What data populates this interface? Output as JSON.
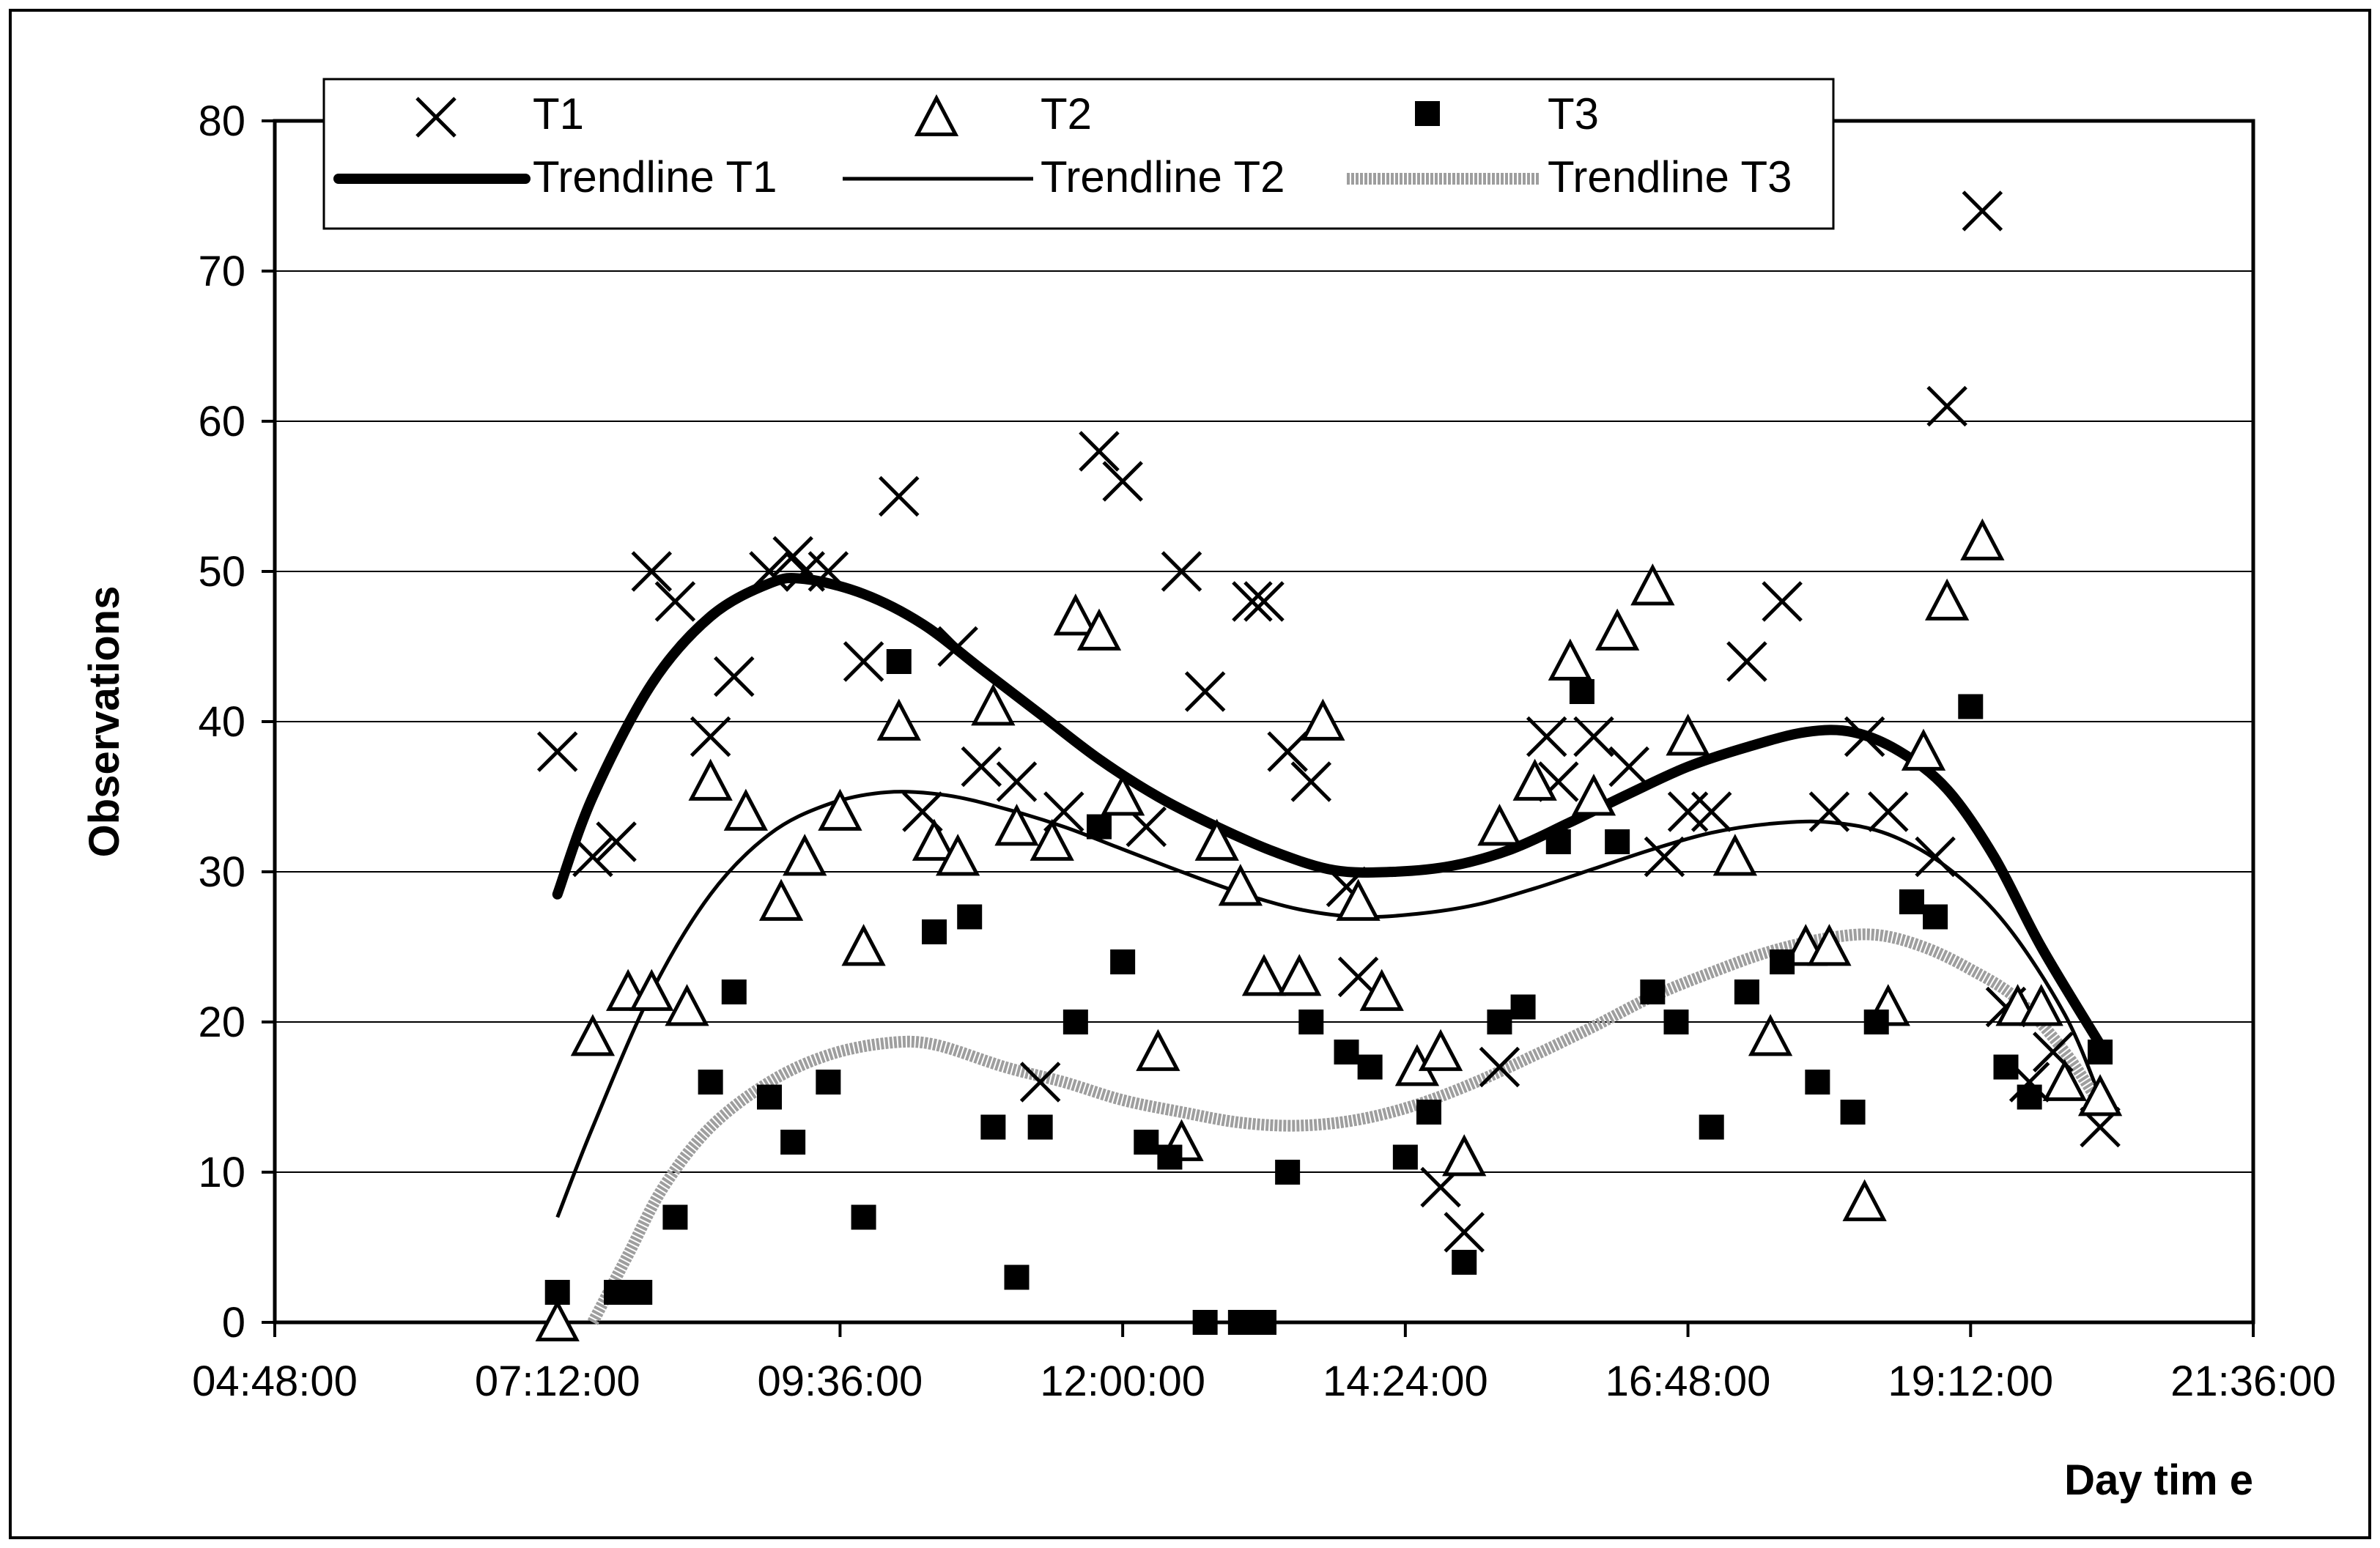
{
  "chart_data": {
    "type": "scatter",
    "xlabel": "Day tim e",
    "ylabel": "Observations",
    "x_unit": "time of day (hours)",
    "xlim_hours": [
      4.8,
      21.6
    ],
    "ylim": [
      0,
      80
    ],
    "y_ticks": [
      0,
      10,
      20,
      30,
      40,
      50,
      60,
      70,
      80
    ],
    "x_ticks": [
      {
        "value": 4.8,
        "label": "04:48:00"
      },
      {
        "value": 7.2,
        "label": "07:12:00"
      },
      {
        "value": 9.6,
        "label": "09:36:00"
      },
      {
        "value": 12.0,
        "label": "12:00:00"
      },
      {
        "value": 14.4,
        "label": "14:24:00"
      },
      {
        "value": 16.8,
        "label": "16:48:00"
      },
      {
        "value": 19.2,
        "label": "19:12:00"
      },
      {
        "value": 21.6,
        "label": "21:36:00"
      }
    ],
    "grid": "horizontal",
    "legend_position": "top",
    "series": [
      {
        "name": "T1",
        "marker": "x",
        "color": "#000000",
        "points": [
          [
            7.2,
            38
          ],
          [
            7.5,
            31
          ],
          [
            7.7,
            32
          ],
          [
            8.0,
            50
          ],
          [
            8.2,
            48
          ],
          [
            8.5,
            39
          ],
          [
            8.7,
            43
          ],
          [
            9.0,
            50
          ],
          [
            9.2,
            51
          ],
          [
            9.3,
            50
          ],
          [
            9.5,
            50
          ],
          [
            9.8,
            44
          ],
          [
            10.1,
            55
          ],
          [
            10.3,
            34
          ],
          [
            10.6,
            45
          ],
          [
            10.8,
            37
          ],
          [
            11.1,
            36
          ],
          [
            11.3,
            16
          ],
          [
            11.5,
            34
          ],
          [
            11.8,
            58
          ],
          [
            12.0,
            56
          ],
          [
            12.2,
            33
          ],
          [
            12.5,
            50
          ],
          [
            12.7,
            42
          ],
          [
            13.1,
            48
          ],
          [
            13.2,
            48
          ],
          [
            13.4,
            38
          ],
          [
            13.6,
            36
          ],
          [
            13.9,
            29
          ],
          [
            14.0,
            23
          ],
          [
            14.7,
            9
          ],
          [
            14.9,
            6
          ],
          [
            15.2,
            17
          ],
          [
            15.6,
            39
          ],
          [
            15.7,
            36
          ],
          [
            16.0,
            39
          ],
          [
            16.3,
            37
          ],
          [
            16.6,
            31
          ],
          [
            16.8,
            34
          ],
          [
            17.0,
            34
          ],
          [
            17.3,
            44
          ],
          [
            17.6,
            48
          ],
          [
            18.0,
            34
          ],
          [
            18.3,
            39
          ],
          [
            18.5,
            34
          ],
          [
            18.9,
            31
          ],
          [
            19.0,
            61
          ],
          [
            19.3,
            74
          ],
          [
            19.5,
            21
          ],
          [
            19.7,
            16
          ],
          [
            19.9,
            18
          ],
          [
            20.3,
            13
          ]
        ]
      },
      {
        "name": "T2",
        "marker": "triangle",
        "color": "#000000",
        "points": [
          [
            7.2,
            0
          ],
          [
            7.5,
            19
          ],
          [
            7.8,
            22
          ],
          [
            8.0,
            22
          ],
          [
            8.3,
            21
          ],
          [
            8.5,
            36
          ],
          [
            8.8,
            34
          ],
          [
            9.1,
            28
          ],
          [
            9.3,
            31
          ],
          [
            9.6,
            34
          ],
          [
            9.8,
            25
          ],
          [
            10.1,
            40
          ],
          [
            10.4,
            32
          ],
          [
            10.6,
            31
          ],
          [
            10.9,
            41
          ],
          [
            11.1,
            33
          ],
          [
            11.4,
            32
          ],
          [
            11.6,
            47
          ],
          [
            11.8,
            46
          ],
          [
            12.0,
            35
          ],
          [
            12.3,
            18
          ],
          [
            12.5,
            12
          ],
          [
            12.8,
            32
          ],
          [
            13.0,
            29
          ],
          [
            13.2,
            23
          ],
          [
            13.5,
            23
          ],
          [
            13.7,
            40
          ],
          [
            14.0,
            28
          ],
          [
            14.2,
            22
          ],
          [
            14.5,
            17
          ],
          [
            14.7,
            18
          ],
          [
            14.9,
            11
          ],
          [
            15.2,
            33
          ],
          [
            15.5,
            36
          ],
          [
            15.8,
            44
          ],
          [
            16.0,
            35
          ],
          [
            16.2,
            46
          ],
          [
            16.5,
            49
          ],
          [
            16.8,
            39
          ],
          [
            17.2,
            31
          ],
          [
            17.5,
            19
          ],
          [
            17.8,
            25
          ],
          [
            18.0,
            25
          ],
          [
            18.3,
            8
          ],
          [
            18.5,
            21
          ],
          [
            18.8,
            38
          ],
          [
            19.0,
            48
          ],
          [
            19.3,
            52
          ],
          [
            19.6,
            21
          ],
          [
            19.8,
            21
          ],
          [
            20.0,
            16
          ],
          [
            20.3,
            15
          ]
        ]
      },
      {
        "name": "T3",
        "marker": "square",
        "color": "#000000",
        "points": [
          [
            7.2,
            2
          ],
          [
            7.7,
            2
          ],
          [
            7.9,
            2
          ],
          [
            8.2,
            7
          ],
          [
            8.5,
            16
          ],
          [
            8.7,
            22
          ],
          [
            9.0,
            15
          ],
          [
            9.2,
            12
          ],
          [
            9.5,
            16
          ],
          [
            9.8,
            7
          ],
          [
            10.1,
            44
          ],
          [
            10.4,
            26
          ],
          [
            10.7,
            27
          ],
          [
            10.9,
            13
          ],
          [
            11.1,
            3
          ],
          [
            11.3,
            13
          ],
          [
            11.6,
            20
          ],
          [
            11.8,
            33
          ],
          [
            12.0,
            24
          ],
          [
            12.2,
            12
          ],
          [
            12.4,
            11
          ],
          [
            12.7,
            0
          ],
          [
            13.0,
            0
          ],
          [
            13.2,
            0
          ],
          [
            13.4,
            10
          ],
          [
            13.6,
            20
          ],
          [
            13.9,
            18
          ],
          [
            14.1,
            17
          ],
          [
            14.4,
            11
          ],
          [
            14.6,
            14
          ],
          [
            14.9,
            4
          ],
          [
            15.2,
            20
          ],
          [
            15.4,
            21
          ],
          [
            15.7,
            32
          ],
          [
            15.9,
            42
          ],
          [
            16.2,
            32
          ],
          [
            16.5,
            22
          ],
          [
            16.7,
            20
          ],
          [
            17.0,
            13
          ],
          [
            17.3,
            22
          ],
          [
            17.6,
            24
          ],
          [
            17.9,
            16
          ],
          [
            18.2,
            14
          ],
          [
            18.4,
            20
          ],
          [
            18.7,
            28
          ],
          [
            18.9,
            27
          ],
          [
            19.2,
            41
          ],
          [
            19.5,
            17
          ],
          [
            19.7,
            15
          ],
          [
            20.3,
            18
          ]
        ]
      },
      {
        "name": "Trendline T1",
        "line_style": "thick",
        "color": "#000000",
        "points": [
          [
            7.2,
            28.5
          ],
          [
            7.5,
            35
          ],
          [
            8.0,
            42.5
          ],
          [
            8.5,
            47
          ],
          [
            9.0,
            49.2
          ],
          [
            9.3,
            49.5
          ],
          [
            9.8,
            48.5
          ],
          [
            10.3,
            46.5
          ],
          [
            10.8,
            43.5
          ],
          [
            11.3,
            40.5
          ],
          [
            11.8,
            37.5
          ],
          [
            12.3,
            35
          ],
          [
            12.8,
            33
          ],
          [
            13.3,
            31.3
          ],
          [
            13.8,
            30.1
          ],
          [
            14.3,
            30
          ],
          [
            14.8,
            30.4
          ],
          [
            15.3,
            31.5
          ],
          [
            15.8,
            33.3
          ],
          [
            16.3,
            35.2
          ],
          [
            16.8,
            37
          ],
          [
            17.3,
            38.3
          ],
          [
            17.8,
            39.3
          ],
          [
            18.2,
            39.3
          ],
          [
            18.6,
            38
          ],
          [
            19.0,
            35.5
          ],
          [
            19.4,
            31
          ],
          [
            19.8,
            25
          ],
          [
            20.3,
            18.5
          ]
        ]
      },
      {
        "name": "Trendline T2",
        "line_style": "thin",
        "color": "#000000",
        "points": [
          [
            7.2,
            7
          ],
          [
            7.5,
            13
          ],
          [
            8.0,
            22
          ],
          [
            8.5,
            28.5
          ],
          [
            9.0,
            32.5
          ],
          [
            9.5,
            34.5
          ],
          [
            10.0,
            35.3
          ],
          [
            10.5,
            35.1
          ],
          [
            11.0,
            34.2
          ],
          [
            11.5,
            33
          ],
          [
            12.0,
            31.5
          ],
          [
            12.5,
            30
          ],
          [
            13.0,
            28.6
          ],
          [
            13.5,
            27.5
          ],
          [
            14.0,
            27
          ],
          [
            14.5,
            27.2
          ],
          [
            15.0,
            27.8
          ],
          [
            15.5,
            28.9
          ],
          [
            16.0,
            30.2
          ],
          [
            16.5,
            31.5
          ],
          [
            17.0,
            32.6
          ],
          [
            17.5,
            33.2
          ],
          [
            18.0,
            33.3
          ],
          [
            18.5,
            32.5
          ],
          [
            19.0,
            30.3
          ],
          [
            19.5,
            26.5
          ],
          [
            20.0,
            20.5
          ],
          [
            20.3,
            15
          ]
        ]
      },
      {
        "name": "Trendline T3",
        "line_style": "thick-gray",
        "color": "#9e9e9e",
        "points": [
          [
            7.5,
            0
          ],
          [
            7.8,
            4.5
          ],
          [
            8.1,
            9
          ],
          [
            8.5,
            13
          ],
          [
            9.0,
            16
          ],
          [
            9.5,
            17.8
          ],
          [
            10.0,
            18.6
          ],
          [
            10.4,
            18.5
          ],
          [
            11.0,
            17
          ],
          [
            11.5,
            16
          ],
          [
            12.0,
            14.8
          ],
          [
            12.5,
            14
          ],
          [
            13.0,
            13.3
          ],
          [
            13.5,
            13.1
          ],
          [
            14.0,
            13.5
          ],
          [
            14.5,
            14.5
          ],
          [
            15.0,
            16
          ],
          [
            15.5,
            17.8
          ],
          [
            16.0,
            19.7
          ],
          [
            16.5,
            21.7
          ],
          [
            17.0,
            23.3
          ],
          [
            17.5,
            24.7
          ],
          [
            18.0,
            25.6
          ],
          [
            18.4,
            25.8
          ],
          [
            18.8,
            25
          ],
          [
            19.2,
            23.5
          ],
          [
            19.6,
            21.5
          ],
          [
            20.0,
            18
          ],
          [
            20.3,
            14.5
          ]
        ]
      }
    ]
  },
  "legend": {
    "items": [
      {
        "label": "T1",
        "series": 0
      },
      {
        "label": "T2",
        "series": 1
      },
      {
        "label": "T3",
        "series": 2
      },
      {
        "label": "Trendline T1",
        "series": 3
      },
      {
        "label": "Trendline T2",
        "series": 4
      },
      {
        "label": "Trendline T3",
        "series": 5
      }
    ]
  }
}
